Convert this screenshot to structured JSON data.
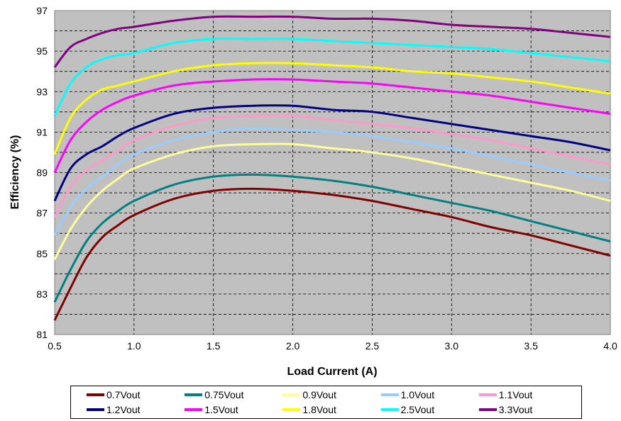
{
  "chart_data": {
    "type": "line",
    "title": "",
    "xlabel": "Load Current (A)",
    "ylabel": "Efficiency (%)",
    "xlim": [
      0.5,
      4.0
    ],
    "ylim": [
      81,
      97
    ],
    "x_ticks": [
      "0.5",
      "1.0",
      "1.5",
      "2.0",
      "2.5",
      "3.0",
      "3.5",
      "4.0"
    ],
    "y_ticks": [
      "81",
      "83",
      "85",
      "87",
      "89",
      "91",
      "93",
      "95",
      "97"
    ],
    "grid": true,
    "plot_background": "#c0c0c0",
    "legend_position": "bottom",
    "x": [
      0.5,
      0.6,
      0.7,
      0.8,
      0.9,
      1.0,
      1.25,
      1.5,
      1.75,
      2.0,
      2.25,
      2.5,
      2.75,
      3.0,
      3.25,
      3.5,
      3.75,
      4.0
    ],
    "series": [
      {
        "name": "0.7Vout",
        "color": "#800000",
        "values": [
          81.7,
          83.3,
          84.8,
          85.8,
          86.4,
          86.9,
          87.7,
          88.1,
          88.2,
          88.1,
          87.9,
          87.6,
          87.2,
          86.8,
          86.3,
          85.9,
          85.4,
          84.9
        ]
      },
      {
        "name": "0.75Vout",
        "color": "#008080",
        "values": [
          82.6,
          84.2,
          85.6,
          86.5,
          87.1,
          87.6,
          88.4,
          88.8,
          88.9,
          88.8,
          88.6,
          88.3,
          87.9,
          87.5,
          87.1,
          86.6,
          86.1,
          85.6
        ]
      },
      {
        "name": "0.9Vout",
        "color": "#ffff99",
        "values": [
          84.7,
          86.2,
          87.3,
          88.1,
          88.7,
          89.2,
          89.9,
          90.3,
          90.4,
          90.4,
          90.2,
          90.0,
          89.7,
          89.3,
          88.9,
          88.5,
          88.1,
          87.6
        ]
      },
      {
        "name": "1.0Vout",
        "color": "#99ccff",
        "values": [
          85.9,
          87.3,
          88.2,
          88.8,
          89.4,
          89.9,
          90.6,
          91.0,
          91.2,
          91.1,
          91.0,
          90.8,
          90.5,
          90.2,
          89.8,
          89.4,
          89.0,
          88.6
        ]
      },
      {
        "name": "1.1Vout",
        "color": "#ff99cc",
        "values": [
          86.8,
          88.3,
          89.1,
          89.6,
          90.1,
          90.6,
          91.3,
          91.7,
          91.8,
          91.8,
          91.6,
          91.4,
          91.2,
          90.9,
          90.6,
          90.2,
          89.8,
          89.4
        ]
      },
      {
        "name": "1.2Vout",
        "color": "#000080",
        "values": [
          87.6,
          89.2,
          89.9,
          90.3,
          90.8,
          91.2,
          91.9,
          92.2,
          92.3,
          92.3,
          92.1,
          92.0,
          91.7,
          91.4,
          91.1,
          90.8,
          90.5,
          90.1
        ]
      },
      {
        "name": "1.5Vout",
        "color": "#ff00ff",
        "values": [
          89.0,
          90.6,
          91.5,
          92.1,
          92.5,
          92.8,
          93.3,
          93.5,
          93.6,
          93.6,
          93.5,
          93.4,
          93.2,
          93.0,
          92.8,
          92.5,
          92.2,
          91.9
        ]
      },
      {
        "name": "1.8Vout",
        "color": "#ffff00",
        "values": [
          89.9,
          91.7,
          92.6,
          93.1,
          93.3,
          93.5,
          94.0,
          94.3,
          94.4,
          94.4,
          94.3,
          94.2,
          94.0,
          93.9,
          93.7,
          93.5,
          93.2,
          92.9
        ]
      },
      {
        "name": "2.5Vout",
        "color": "#00ffff",
        "values": [
          91.8,
          93.4,
          94.2,
          94.6,
          94.8,
          94.9,
          95.4,
          95.6,
          95.6,
          95.6,
          95.5,
          95.4,
          95.3,
          95.2,
          95.1,
          94.9,
          94.7,
          94.5
        ]
      },
      {
        "name": "3.3Vout",
        "color": "#800080",
        "values": [
          94.2,
          95.2,
          95.6,
          95.9,
          96.1,
          96.2,
          96.5,
          96.7,
          96.7,
          96.7,
          96.6,
          96.6,
          96.5,
          96.3,
          96.2,
          96.1,
          95.9,
          95.7
        ]
      }
    ]
  }
}
